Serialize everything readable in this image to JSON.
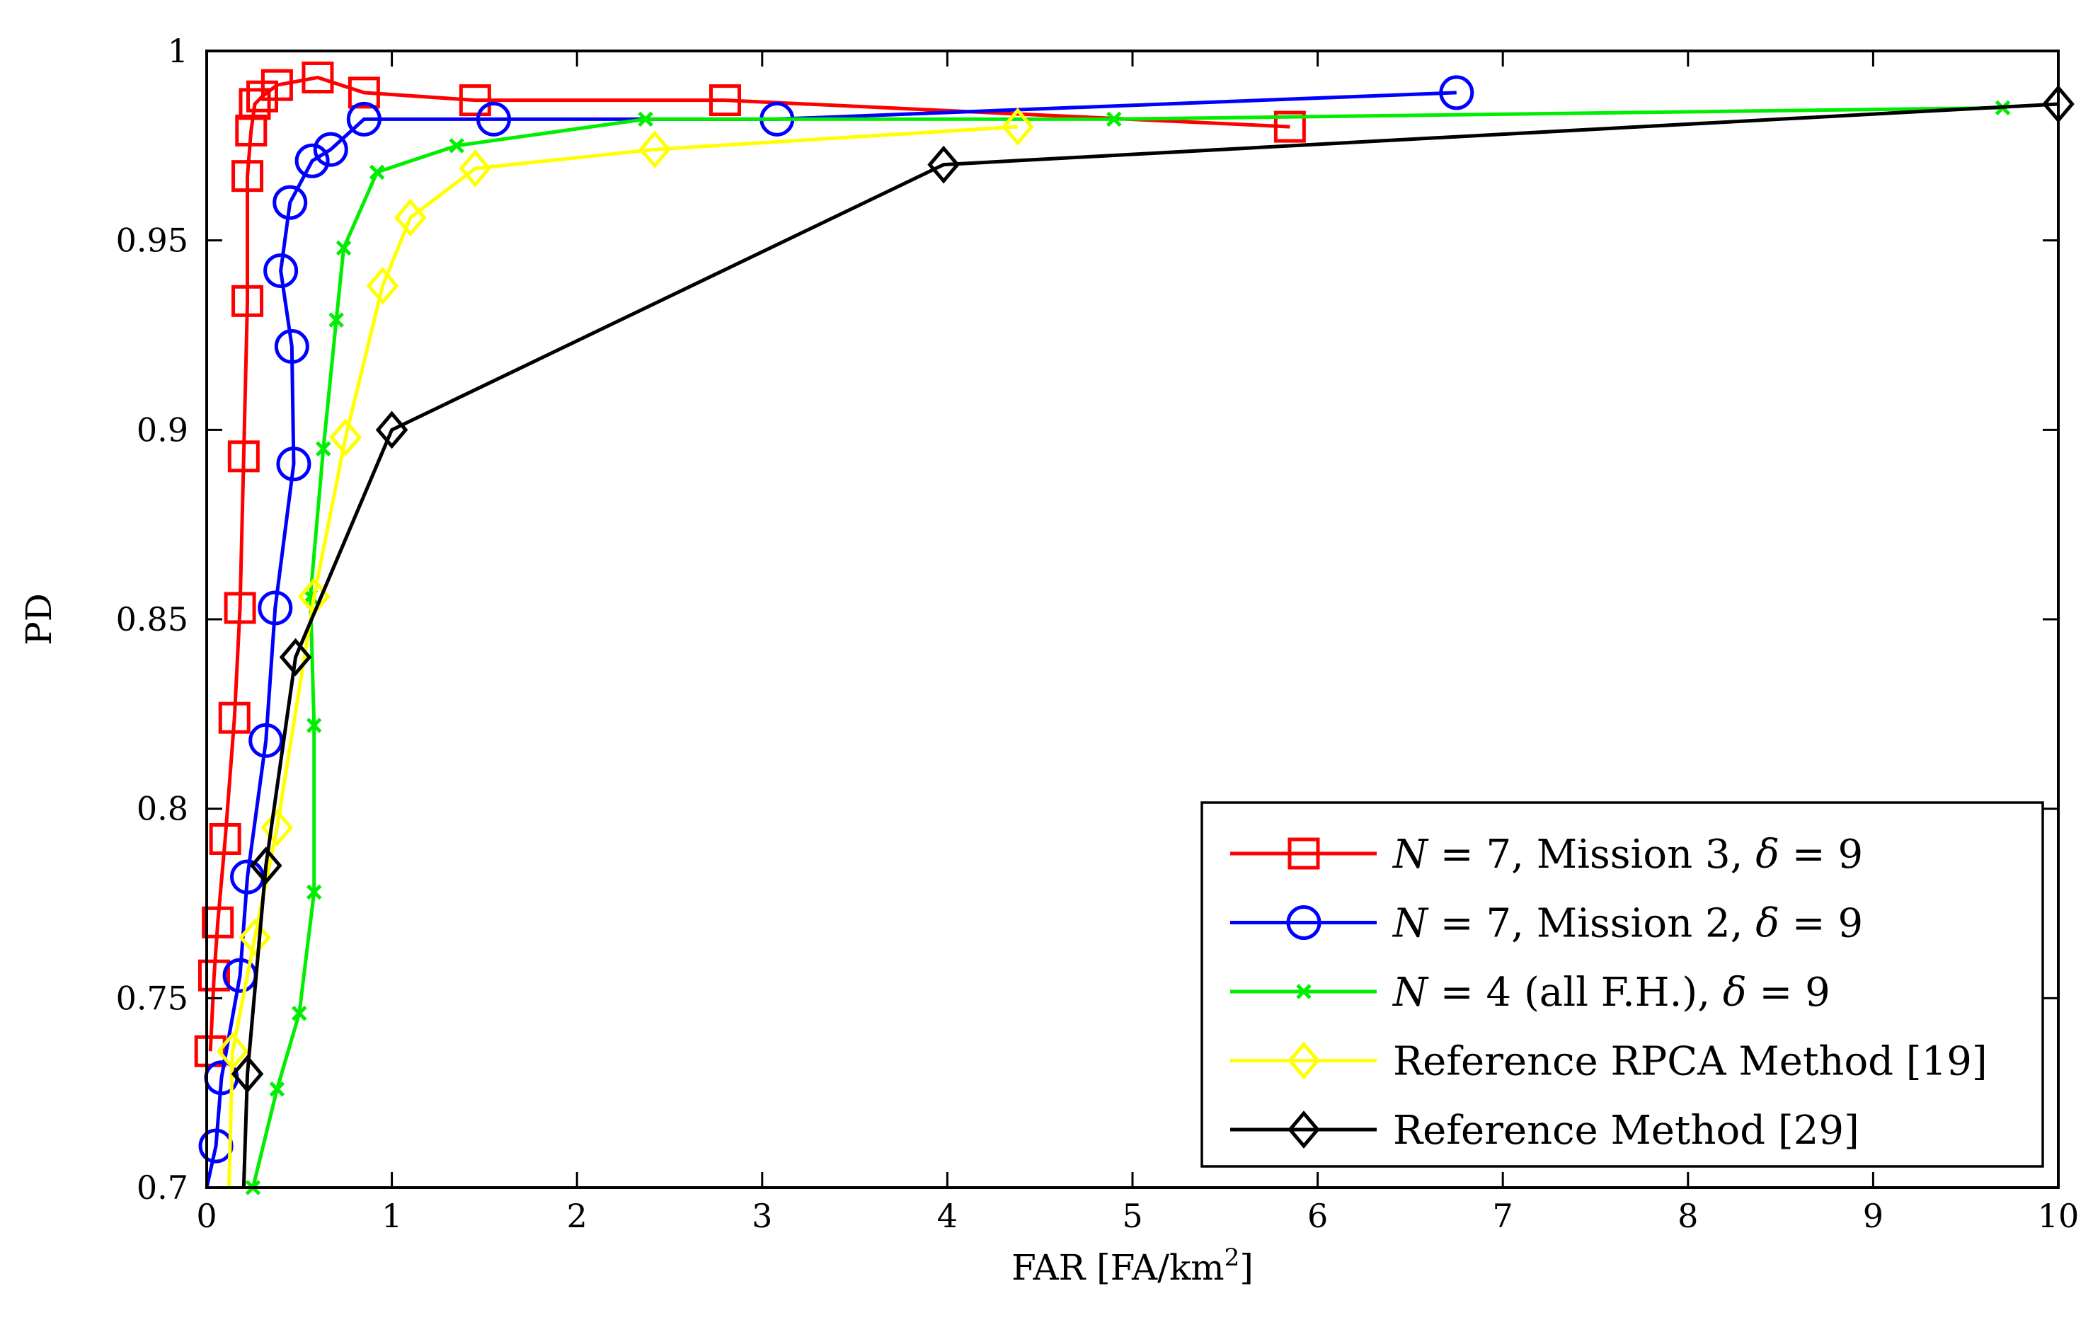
{
  "chart_data": {
    "type": "line",
    "title": "",
    "xlabel": "FAR [FA/km",
    "xlabel_sup": "2",
    "xlabel_end": "]",
    "ylabel": "PD",
    "xlim": [
      0,
      10
    ],
    "ylim": [
      0.7,
      1.0
    ],
    "grid": false,
    "legend_position": "lower-right",
    "x_ticks": [
      0,
      1,
      2,
      3,
      4,
      5,
      6,
      7,
      8,
      9,
      10
    ],
    "x_tick_labels": [
      "0",
      "1",
      "2",
      "3",
      "4",
      "5",
      "6",
      "7",
      "8",
      "9",
      "10"
    ],
    "y_ticks": [
      0.7,
      0.75,
      0.8,
      0.85,
      0.9,
      0.95,
      1.0
    ],
    "y_tick_labels": [
      "0.7",
      "0.75",
      "0.8",
      "0.85",
      "0.9",
      "0.95",
      "1"
    ],
    "series": [
      {
        "name": "N = 7, Mission 3, δ = 9",
        "legend_parts": [
          "N",
          " = 7, Mission 3, ",
          "δ",
          " = 9"
        ],
        "color": "#ff0000",
        "marker": "square",
        "x": [
          0.02,
          0.04,
          0.06,
          0.1,
          0.15,
          0.18,
          0.2,
          0.22,
          0.22,
          0.24,
          0.26,
          0.3,
          0.38,
          0.6,
          0.85,
          1.45,
          2.8,
          5.85
        ],
        "y": [
          0.736,
          0.756,
          0.77,
          0.792,
          0.824,
          0.853,
          0.893,
          0.934,
          0.967,
          0.979,
          0.986,
          0.988,
          0.991,
          0.993,
          0.989,
          0.987,
          0.987,
          0.98
        ]
      },
      {
        "name": "N = 7, Mission 2, δ = 9",
        "legend_parts": [
          "N",
          " = 7, Mission 2, ",
          "δ",
          " = 9"
        ],
        "color": "#0000ff",
        "marker": "circle",
        "x": [
          0.05,
          0.08,
          0.18,
          0.22,
          0.32,
          0.37,
          0.47,
          0.46,
          0.4,
          0.45,
          0.57,
          0.67,
          0.85,
          1.55,
          3.08,
          6.75
        ],
        "y": [
          0.711,
          0.729,
          0.756,
          0.782,
          0.818,
          0.853,
          0.891,
          0.922,
          0.942,
          0.96,
          0.971,
          0.974,
          0.982,
          0.982,
          0.982,
          0.989
        ],
        "clip_start": [
          0.0,
          0.7
        ]
      },
      {
        "name": "N = 4 (all F.H.), δ = 9",
        "legend_parts": [
          "N",
          " = 4 (all F.H.), ",
          "δ",
          " = 9"
        ],
        "color": "#00ee00",
        "marker": "cross",
        "x": [
          0.25,
          0.38,
          0.5,
          0.58,
          0.58,
          0.56,
          0.63,
          0.7,
          0.74,
          0.92,
          1.35,
          2.37,
          4.9,
          9.7
        ],
        "y": [
          0.7,
          0.726,
          0.746,
          0.778,
          0.822,
          0.856,
          0.895,
          0.929,
          0.948,
          0.968,
          0.975,
          0.982,
          0.982,
          0.985
        ]
      },
      {
        "name": "Reference RPCA Method [19]",
        "legend_parts": [
          "",
          "Reference RPCA Method [19]",
          "",
          ""
        ],
        "color": "#ffff00",
        "marker": "diamond",
        "x": [
          0.14,
          0.26,
          0.38,
          0.58,
          0.75,
          0.95,
          1.1,
          1.45,
          2.42,
          4.38
        ],
        "y": [
          0.736,
          0.766,
          0.795,
          0.856,
          0.898,
          0.938,
          0.956,
          0.969,
          0.974,
          0.98
        ],
        "clip_start": [
          0.12,
          0.7
        ]
      },
      {
        "name": "Reference Method [29]",
        "legend_parts": [
          "",
          "Reference Method [29]",
          "",
          ""
        ],
        "color": "#000000",
        "marker": "diamond",
        "x": [
          0.22,
          0.32,
          0.48,
          1.0,
          3.98,
          10.0
        ],
        "y": [
          0.73,
          0.785,
          0.84,
          0.9,
          0.97,
          0.986
        ],
        "clip_start": [
          0.2,
          0.7
        ]
      }
    ]
  }
}
